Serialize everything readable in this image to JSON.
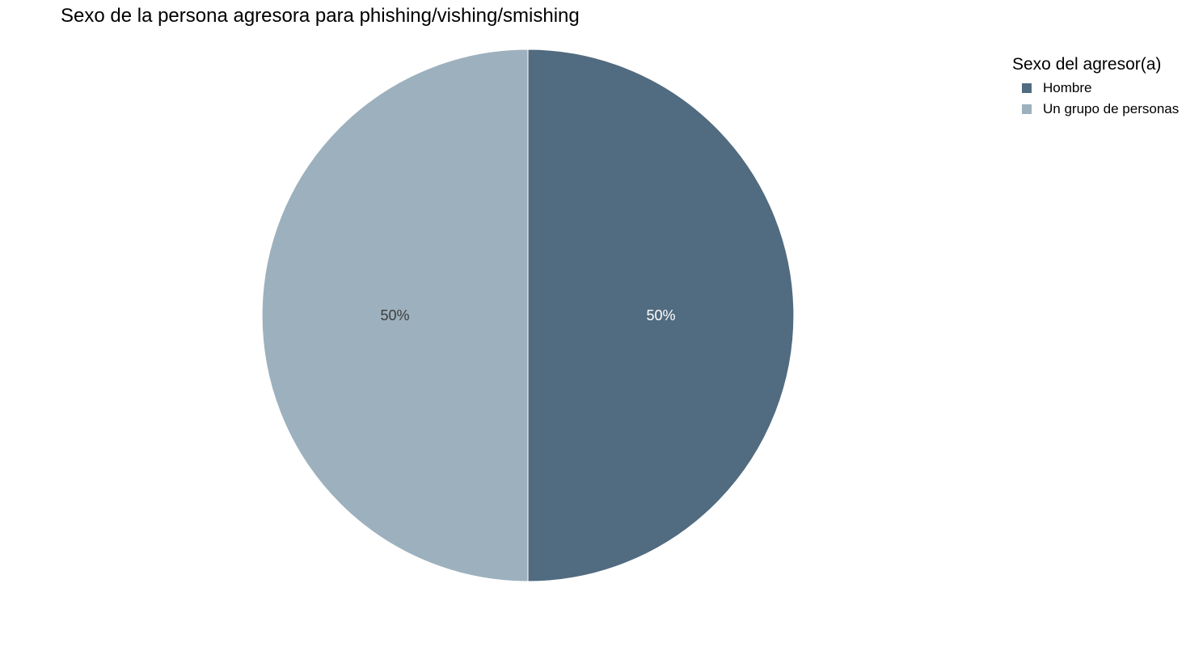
{
  "chart_data": {
    "type": "pie",
    "title": "Sexo de la persona agresora para phishing/vishing/smishing",
    "legend_title": "Sexo del agresor(a)",
    "legend_position": "right",
    "categories": [
      "Hombre",
      "Un grupo de personas"
    ],
    "values": [
      50,
      50
    ],
    "labels": [
      "50%",
      "50%"
    ],
    "colors": [
      "#516b80",
      "#9db0bd"
    ],
    "label_colors": [
      "#ffffff",
      "#3d3d3d"
    ]
  }
}
